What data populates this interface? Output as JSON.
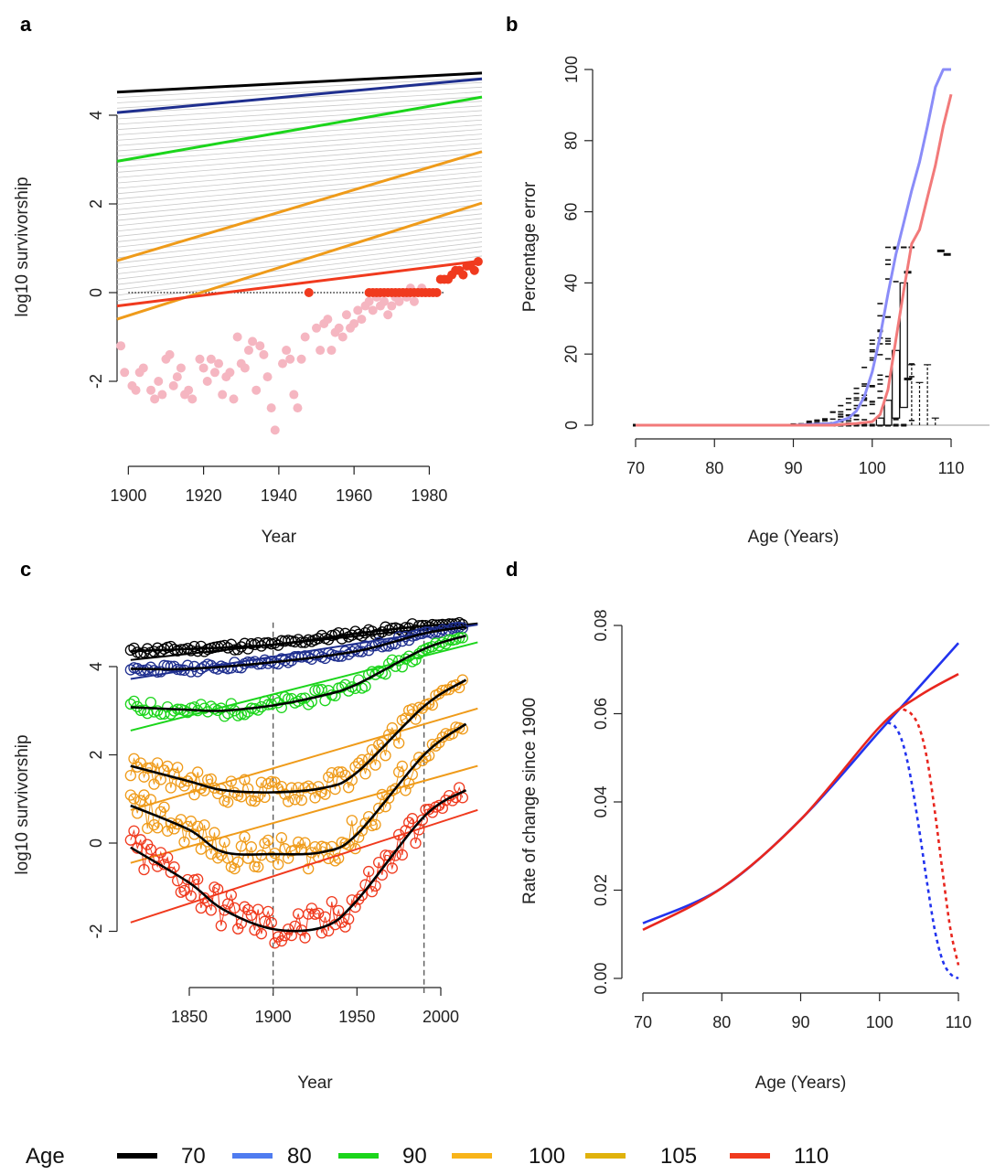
{
  "panel_labels": [
    "a",
    "b",
    "c",
    "d"
  ],
  "legend": {
    "title": "Age",
    "items": [
      {
        "label": "70",
        "color": "#000000"
      },
      {
        "label": "80",
        "color": "#4f7cf0"
      },
      {
        "label": "90",
        "color": "#1bd51b"
      },
      {
        "label": "100",
        "color": "#f8b41a"
      },
      {
        "label": "105",
        "color": "#e0b20c"
      },
      {
        "label": "110",
        "color": "#f03a1e"
      }
    ]
  },
  "chart_data": [
    {
      "panel": "a",
      "type": "line",
      "xlabel": "Year",
      "ylabel": "log10 survivorship",
      "x_ticks": [
        1900,
        1920,
        1940,
        1960,
        1980
      ],
      "y_ticks": [
        -2,
        0,
        2,
        4
      ],
      "xlim": [
        1897,
        1994
      ],
      "ylim": [
        -3.3,
        5.1
      ],
      "zero_reference": {
        "x": [
          1900,
          1984
        ],
        "y": 0,
        "style": "dotted"
      },
      "series": [
        {
          "color": "#000000",
          "x": [
            1897,
            1994
          ],
          "y": [
            4.52,
            4.95
          ]
        },
        {
          "color": "#1f2f8f",
          "x": [
            1897,
            1994
          ],
          "y": [
            4.06,
            4.82
          ]
        },
        {
          "color": "#1bd51b",
          "x": [
            1897,
            1994
          ],
          "y": [
            2.96,
            4.41
          ]
        },
        {
          "color": "#ef9b1a",
          "x": [
            1897,
            1994
          ],
          "y": [
            0.72,
            3.18
          ]
        },
        {
          "color": "#ef9b1a",
          "x": [
            1897,
            1994
          ],
          "y": [
            -0.6,
            2.02
          ]
        },
        {
          "color": "#f03a1e",
          "x": [
            1897,
            1994
          ],
          "y": [
            -0.3,
            0.72
          ]
        }
      ],
      "points_pink": [
        [
          1898,
          -1.2
        ],
        [
          1899,
          -1.8
        ],
        [
          1901,
          -2.1
        ],
        [
          1902,
          -2.2
        ],
        [
          1903,
          -1.8
        ],
        [
          1904,
          -1.7
        ],
        [
          1906,
          -2.2
        ],
        [
          1907,
          -2.4
        ],
        [
          1908,
          -2.0
        ],
        [
          1909,
          -2.3
        ],
        [
          1910,
          -1.5
        ],
        [
          1911,
          -1.4
        ],
        [
          1912,
          -2.1
        ],
        [
          1913,
          -1.9
        ],
        [
          1914,
          -1.7
        ],
        [
          1915,
          -2.3
        ],
        [
          1916,
          -2.2
        ],
        [
          1917,
          -2.4
        ],
        [
          1919,
          -1.5
        ],
        [
          1920,
          -1.7
        ],
        [
          1921,
          -2.0
        ],
        [
          1922,
          -1.5
        ],
        [
          1923,
          -1.8
        ],
        [
          1924,
          -1.6
        ],
        [
          1925,
          -2.3
        ],
        [
          1926,
          -1.9
        ],
        [
          1927,
          -1.8
        ],
        [
          1928,
          -2.4
        ],
        [
          1929,
          -1.0
        ],
        [
          1930,
          -1.6
        ],
        [
          1931,
          -1.7
        ],
        [
          1932,
          -1.3
        ],
        [
          1933,
          -1.1
        ],
        [
          1934,
          -2.2
        ],
        [
          1935,
          -1.2
        ],
        [
          1936,
          -1.4
        ],
        [
          1937,
          -1.9
        ],
        [
          1938,
          -2.6
        ],
        [
          1939,
          -3.1
        ],
        [
          1941,
          -1.6
        ],
        [
          1942,
          -1.3
        ],
        [
          1943,
          -1.5
        ],
        [
          1944,
          -2.3
        ],
        [
          1945,
          -2.6
        ],
        [
          1946,
          -1.5
        ],
        [
          1947,
          -1.0
        ],
        [
          1950,
          -0.8
        ],
        [
          1951,
          -1.3
        ],
        [
          1952,
          -0.7
        ],
        [
          1953,
          -0.6
        ],
        [
          1954,
          -1.3
        ],
        [
          1955,
          -0.9
        ],
        [
          1956,
          -0.8
        ],
        [
          1957,
          -1.0
        ],
        [
          1958,
          -0.5
        ],
        [
          1959,
          -0.8
        ],
        [
          1960,
          -0.7
        ],
        [
          1961,
          -0.4
        ],
        [
          1962,
          -0.6
        ],
        [
          1963,
          -0.3
        ],
        [
          1964,
          -0.2
        ],
        [
          1965,
          -0.4
        ],
        [
          1966,
          -0.1
        ],
        [
          1967,
          -0.3
        ],
        [
          1968,
          -0.2
        ],
        [
          1969,
          -0.5
        ],
        [
          1970,
          -0.3
        ],
        [
          1971,
          -0.1
        ],
        [
          1972,
          -0.2
        ],
        [
          1973,
          0.0
        ],
        [
          1974,
          -0.1
        ],
        [
          1975,
          0.1
        ],
        [
          1976,
          -0.2
        ],
        [
          1977,
          0.0
        ],
        [
          1978,
          0.1
        ],
        [
          1979,
          0.0
        ]
      ],
      "points_red": [
        [
          1948,
          0.0
        ],
        [
          1964,
          0.0
        ],
        [
          1965,
          0.0
        ],
        [
          1966,
          0.0
        ],
        [
          1967,
          0.0
        ],
        [
          1968,
          0.0
        ],
        [
          1969,
          0.0
        ],
        [
          1970,
          0.0
        ],
        [
          1971,
          0.0
        ],
        [
          1972,
          0.0
        ],
        [
          1973,
          0.0
        ],
        [
          1974,
          0.0
        ],
        [
          1975,
          0.0
        ],
        [
          1976,
          0.0
        ],
        [
          1977,
          0.0
        ],
        [
          1978,
          0.0
        ],
        [
          1979,
          0.0
        ],
        [
          1980,
          0.0
        ],
        [
          1981,
          0.0
        ],
        [
          1982,
          0.0
        ],
        [
          1983,
          0.3
        ],
        [
          1984,
          0.3
        ],
        [
          1985,
          0.3
        ],
        [
          1986,
          0.4
        ],
        [
          1987,
          0.5
        ],
        [
          1988,
          0.5
        ],
        [
          1989,
          0.4
        ],
        [
          1990,
          0.6
        ],
        [
          1991,
          0.6
        ],
        [
          1992,
          0.5
        ],
        [
          1993,
          0.7
        ]
      ]
    },
    {
      "panel": "b",
      "type": "line",
      "xlabel": "Age (Years)",
      "ylabel": "Percentage error",
      "x_ticks": [
        70,
        80,
        90,
        100,
        110
      ],
      "y_ticks": [
        0,
        20,
        40,
        60,
        80,
        100
      ],
      "xlim": [
        70,
        110
      ],
      "ylim": [
        0,
        100
      ],
      "series": [
        {
          "color": "#8a8cf8",
          "x": [
            70,
            90,
            95,
            97,
            98,
            99,
            100,
            101,
            102,
            103,
            104,
            105,
            106,
            107,
            108,
            109,
            110
          ],
          "y": [
            0,
            0,
            0.5,
            2,
            4,
            8,
            15,
            25,
            37,
            48,
            57,
            66,
            74,
            84,
            95,
            100,
            100
          ]
        },
        {
          "color": "#f27a7a",
          "x": [
            70,
            95,
            98,
            100,
            101,
            102,
            103,
            104,
            105,
            106,
            107,
            108,
            109,
            110
          ],
          "y": [
            0,
            0,
            0.5,
            1,
            3,
            10,
            24,
            38,
            51,
            55,
            64,
            73,
            84,
            93
          ]
        }
      ],
      "boxes": [
        {
          "x": 101,
          "q1": 0,
          "q3": 2
        },
        {
          "x": 102,
          "q1": 0,
          "q3": 7
        },
        {
          "x": 103,
          "q1": 2,
          "q3": 21
        },
        {
          "x": 104,
          "q1": 5,
          "q3": 40
        }
      ]
    },
    {
      "panel": "c",
      "type": "line",
      "xlabel": "Year",
      "ylabel": "log10 survivorship",
      "x_ticks": [
        1850,
        1900,
        1950,
        2000
      ],
      "y_ticks": [
        -2,
        0,
        2,
        4
      ],
      "xlim": [
        1815,
        2015
      ],
      "ylim": [
        -3.4,
        5.0
      ],
      "vlines": [
        1900,
        1990
      ],
      "series": [
        {
          "color": "#000000",
          "smooth_x": [
            1815,
            1850,
            1900,
            1950,
            1990,
            2015
          ],
          "smooth_y": [
            4.35,
            4.4,
            4.5,
            4.75,
            4.92,
            4.98
          ],
          "trend": [
            4.15,
            4.98
          ]
        },
        {
          "color": "#1f2f8f",
          "smooth_x": [
            1815,
            1850,
            1900,
            1950,
            1990,
            2015
          ],
          "smooth_y": [
            3.95,
            3.95,
            4.1,
            4.35,
            4.75,
            4.9
          ],
          "trend": [
            3.72,
            4.95
          ]
        },
        {
          "color": "#1bd51b",
          "smooth_x": [
            1815,
            1850,
            1870,
            1900,
            1930,
            1950,
            1990,
            2015
          ],
          "smooth_y": [
            3.08,
            3.02,
            3.0,
            3.12,
            3.35,
            3.6,
            4.4,
            4.7
          ],
          "trend": [
            2.55,
            4.55
          ]
        },
        {
          "color": "#ef9b1a",
          "smooth_x": [
            1815,
            1850,
            1870,
            1900,
            1930,
            1950,
            1990,
            2015
          ],
          "smooth_y": [
            1.75,
            1.4,
            1.2,
            1.15,
            1.25,
            1.6,
            3.1,
            3.7
          ],
          "trend": [
            0.75,
            3.05
          ]
        },
        {
          "color": "#ef9b1a",
          "smooth_x": [
            1815,
            1850,
            1870,
            1900,
            1930,
            1950,
            1990,
            2015
          ],
          "smooth_y": [
            0.85,
            0.3,
            -0.2,
            -0.25,
            -0.2,
            0.2,
            2.0,
            2.7
          ],
          "trend": [
            -0.45,
            1.75
          ]
        },
        {
          "color": "#f03a1e",
          "smooth_x": [
            1815,
            1850,
            1870,
            1900,
            1930,
            1950,
            1990,
            2015
          ],
          "smooth_y": [
            -0.1,
            -0.9,
            -1.5,
            -1.95,
            -1.9,
            -1.3,
            0.6,
            1.2
          ],
          "trend": [
            -1.8,
            0.75
          ]
        }
      ]
    },
    {
      "panel": "d",
      "type": "line",
      "xlabel": "Age (Years)",
      "ylabel": "Rate of change since 1900",
      "x_ticks": [
        70,
        80,
        90,
        100,
        110
      ],
      "y_ticks": [
        0.0,
        0.02,
        0.04,
        0.06,
        0.08
      ],
      "y_tick_labels": [
        "0.00",
        "0.02",
        "0.04",
        "0.06",
        "0.08"
      ],
      "xlim": [
        70,
        110
      ],
      "ylim": [
        0,
        0.08
      ],
      "series": [
        {
          "color": "#2233ee",
          "style": "solid",
          "x": [
            70,
            80,
            90,
            100,
            105,
            110
          ],
          "y": [
            0.0125,
            0.0205,
            0.036,
            0.056,
            0.066,
            0.076
          ]
        },
        {
          "color": "#e8261e",
          "style": "solid",
          "x": [
            70,
            80,
            90,
            100,
            105,
            110
          ],
          "y": [
            0.011,
            0.0205,
            0.036,
            0.057,
            0.064,
            0.069
          ]
        },
        {
          "color": "#2233ee",
          "style": "dashed",
          "x": [
            101,
            102,
            103,
            104,
            105,
            106,
            107,
            108,
            109,
            110
          ],
          "y": [
            0.058,
            0.057,
            0.053,
            0.045,
            0.034,
            0.022,
            0.011,
            0.004,
            0.001,
            0.0
          ]
        },
        {
          "color": "#e8261e",
          "style": "dashed",
          "x": [
            103,
            104,
            105,
            106,
            107,
            108,
            109,
            110
          ],
          "y": [
            0.061,
            0.06,
            0.057,
            0.05,
            0.038,
            0.024,
            0.011,
            0.003
          ]
        }
      ]
    }
  ]
}
